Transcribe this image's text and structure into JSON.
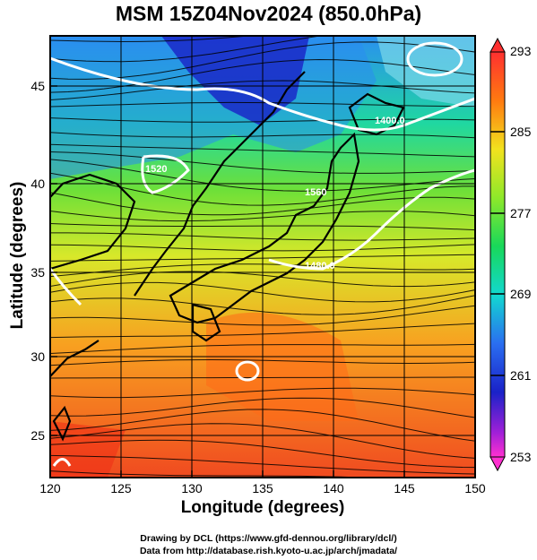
{
  "title": "MSM 15Z04Nov2024 (850.0hPa)",
  "x_axis": {
    "label": "Longitude (degrees)",
    "ticks": [
      "120",
      "125",
      "130",
      "135",
      "140",
      "145",
      "150"
    ]
  },
  "y_axis": {
    "label": "Latitude  (degrees)",
    "ticks": [
      "25",
      "30",
      "35",
      "40",
      "45"
    ]
  },
  "colorbar": {
    "ticks": [
      "293",
      "285",
      "277",
      "269",
      "261",
      "253"
    ]
  },
  "contour_labels": [
    "1520",
    "1400.0",
    "1480.0",
    "1560"
  ],
  "credits": {
    "line1": "Drawing by DCL (https://www.gfd-dennou.org/library/dcl/)",
    "line2": "Data from http://database.rish.kyoto-u.ac.jp/arch/jmadata/"
  },
  "chart_data": {
    "type": "heatmap",
    "title": "MSM 15Z04Nov2024 (850.0hPa)",
    "xlabel": "Longitude (degrees)",
    "ylabel": "Latitude  (degrees)",
    "xlim": [
      120,
      150
    ],
    "ylim": [
      22.5,
      47.5
    ],
    "colorbar_range": [
      253,
      293
    ],
    "colorbar_ticks": [
      293,
      285,
      277,
      269,
      261,
      253
    ],
    "overlays": [
      "streamlines",
      "geopotential height contours",
      "coastlines",
      "grid"
    ],
    "contour_levels_labeled": [
      1400,
      1480,
      1520,
      1560
    ]
  }
}
